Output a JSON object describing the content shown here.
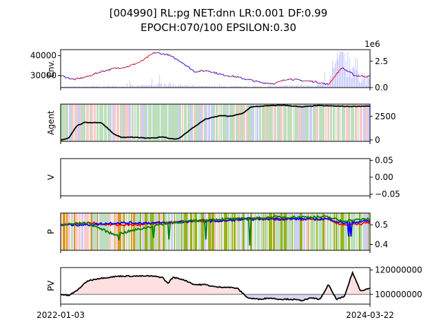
{
  "figure": {
    "title_line1": "[004990] RL:pg NET:dnn LR:0.001 DF:0.99",
    "title_line2": "EPOCH:070/100 EPSILON:0.30",
    "x_start_label": "2022-01-03",
    "x_end_label": "2024-03-22"
  },
  "colors": {
    "buy": "#ff0000",
    "sell": "#0000ff",
    "hold": "#008000",
    "price_up": "#ff0000",
    "price_down": "#0000ff",
    "volume": "#8080ff",
    "agent_line": "#000000",
    "pv_line": "#000000",
    "pv_above_fill": "#ffe0e0",
    "pv_below_fill": "#d8d8f4",
    "baseline": "#808080",
    "bg_hold": "#b5dcb5",
    "bg_buy": "#f7c4c4",
    "bg_sell": "#c8c8f8",
    "bg_explore_olive": "#8fa800",
    "bg_explore_orange": "#d98c00"
  },
  "chart_data": [
    {
      "type": "line",
      "panel": "env",
      "ylabel": "Env.",
      "x_range": [
        "2022-01-03",
        "2024-03-22"
      ],
      "ylim": [
        24000,
        43000
      ],
      "yticks": [
        30000,
        40000
      ],
      "ytick_labels": [
        "30000",
        "40000"
      ],
      "right_axis": {
        "label_offset": "1e6",
        "ylim": [
          0,
          3.6
        ],
        "yticks": [
          0.0,
          2.5
        ],
        "ytick_labels": [
          "0.0",
          "2.5"
        ]
      },
      "series": [
        {
          "x": [
            "2022-01-03",
            "2022-02-07",
            "2022-03-14",
            "2022-04-18",
            "2022-05-23",
            "2022-06-27",
            "2022-08-01",
            "2022-09-05",
            "2022-10-10",
            "2022-11-14",
            "2022-12-19",
            "2023-01-23",
            "2023-02-27",
            "2023-04-03",
            "2023-05-08",
            "2023-06-12",
            "2023-07-17",
            "2023-08-21",
            "2023-09-25",
            "2023-10-30",
            "2023-12-04",
            "2024-01-08",
            "2024-02-12",
            "2024-03-22"
          ],
          "values": [
            30000,
            28000,
            29500,
            32000,
            33500,
            34500,
            37000,
            41500,
            40500,
            37000,
            32000,
            32500,
            30500,
            29500,
            28000,
            26500,
            26000,
            28500,
            27500,
            27000,
            25500,
            34000,
            30000,
            29500
          ]
        },
        {
          "x": [
            "2022-01-03",
            "2022-03-14",
            "2022-05-23",
            "2022-08-01",
            "2022-10-10",
            "2022-12-19",
            "2023-02-27",
            "2023-05-08",
            "2023-07-17",
            "2023-09-25",
            "2023-12-04",
            "2024-01-08",
            "2024-03-22"
          ],
          "values": [
            0.08,
            0.1,
            0.12,
            0.15,
            0.3,
            0.12,
            0.1,
            0.08,
            0.1,
            0.2,
            0.3,
            3.2,
            0.4
          ]
        }
      ]
    },
    {
      "type": "line",
      "panel": "agent",
      "ylabel": "Agent",
      "ylim": [
        -150,
        3800
      ],
      "yticks": [
        0,
        2500
      ],
      "ytick_labels": [
        "0",
        "2500"
      ],
      "series": [
        {
          "x": [
            "2022-01-03",
            "2022-01-24",
            "2022-02-14",
            "2022-03-07",
            "2022-04-18",
            "2022-05-02",
            "2022-05-23",
            "2022-06-13",
            "2022-07-04",
            "2022-08-15",
            "2022-09-05",
            "2022-09-26",
            "2022-10-17",
            "2022-11-07",
            "2022-12-05",
            "2023-01-16",
            "2023-02-27",
            "2023-03-20",
            "2023-04-24",
            "2023-05-15",
            "2023-06-19",
            "2023-08-07",
            "2023-09-25",
            "2023-11-06",
            "2023-12-18",
            "2024-01-29",
            "2024-03-22"
          ],
          "values": [
            0,
            200,
            1500,
            1850,
            1850,
            1400,
            600,
            250,
            300,
            200,
            200,
            350,
            150,
            100,
            1000,
            2200,
            2600,
            2500,
            2800,
            3500,
            3600,
            3700,
            3500,
            3650,
            3600,
            3550,
            3600
          ]
        }
      ]
    },
    {
      "type": "line",
      "panel": "value",
      "ylabel": "V",
      "ylim": [
        -0.055,
        0.055
      ],
      "yticks": [
        -0.05,
        0.0,
        0.05
      ],
      "ytick_labels": [
        "−0.05",
        "0.00",
        "0.05"
      ],
      "series": []
    },
    {
      "type": "line",
      "panel": "policy",
      "ylabel": "P",
      "ylim": [
        0.37,
        0.56
      ],
      "yticks": [
        0.4,
        0.5
      ],
      "ytick_labels": [
        "0.4",
        "0.5"
      ],
      "series": [
        {
          "x": [
            "2022-01-03",
            "2022-03-14",
            "2022-05-23",
            "2022-08-01",
            "2022-10-10",
            "2022-12-19",
            "2023-02-27",
            "2023-05-08",
            "2023-07-17",
            "2023-09-25",
            "2023-12-04",
            "2024-01-08",
            "2024-03-22"
          ],
          "values": [
            0.5,
            0.51,
            0.5,
            0.5,
            0.51,
            0.52,
            0.52,
            0.53,
            0.53,
            0.53,
            0.53,
            0.5,
            0.51
          ]
        },
        {
          "x": [
            "2022-01-03",
            "2022-03-14",
            "2022-05-23",
            "2022-08-01",
            "2022-10-10",
            "2022-12-19",
            "2023-02-27",
            "2023-05-08",
            "2023-07-17",
            "2023-09-25",
            "2023-12-04",
            "2024-01-08",
            "2024-03-22"
          ],
          "values": [
            0.5,
            0.5,
            0.51,
            0.51,
            0.51,
            0.52,
            0.52,
            0.53,
            0.53,
            0.53,
            0.53,
            0.51,
            0.52
          ]
        },
        {
          "x": [
            "2022-01-03",
            "2022-03-14",
            "2022-05-23",
            "2022-08-01",
            "2022-10-10",
            "2022-12-19",
            "2023-02-27",
            "2023-05-08",
            "2023-07-17",
            "2023-09-25",
            "2023-12-04",
            "2024-01-08",
            "2024-03-22"
          ],
          "values": [
            0.5,
            0.51,
            0.45,
            0.48,
            0.51,
            0.52,
            0.53,
            0.53,
            0.54,
            0.54,
            0.54,
            0.52,
            0.53
          ]
        }
      ]
    },
    {
      "type": "area",
      "panel": "portfolio",
      "ylabel": "PV",
      "ylim": [
        92000000,
        122000000
      ],
      "yticks": [
        100000000,
        120000000
      ],
      "ytick_labels": [
        "100000000",
        "120000000"
      ],
      "baseline": 100000000,
      "series": [
        {
          "x": [
            "2022-01-03",
            "2022-01-24",
            "2022-02-14",
            "2022-03-14",
            "2022-04-11",
            "2022-05-09",
            "2022-06-06",
            "2022-07-04",
            "2022-08-01",
            "2022-08-29",
            "2022-09-26",
            "2022-10-10",
            "2022-10-24",
            "2022-11-21",
            "2022-12-19",
            "2023-01-16",
            "2023-02-13",
            "2023-03-13",
            "2023-04-10",
            "2023-05-08",
            "2023-06-05",
            "2023-07-03",
            "2023-07-31",
            "2023-08-28",
            "2023-09-25",
            "2023-10-23",
            "2023-11-13",
            "2023-12-04",
            "2023-12-25",
            "2024-01-15",
            "2024-02-05",
            "2024-02-26",
            "2024-03-22"
          ],
          "values": [
            100000000,
            99000000,
            103000000,
            111000000,
            113000000,
            114000000,
            115000000,
            115000000,
            115000000,
            115000000,
            114000000,
            109000000,
            114000000,
            112000000,
            108000000,
            108000000,
            106000000,
            106000000,
            105000000,
            97000000,
            96000000,
            97000000,
            96000000,
            96000000,
            95000000,
            97000000,
            96000000,
            108000000,
            96000000,
            98000000,
            118000000,
            103000000,
            105000000
          ]
        }
      ]
    }
  ]
}
